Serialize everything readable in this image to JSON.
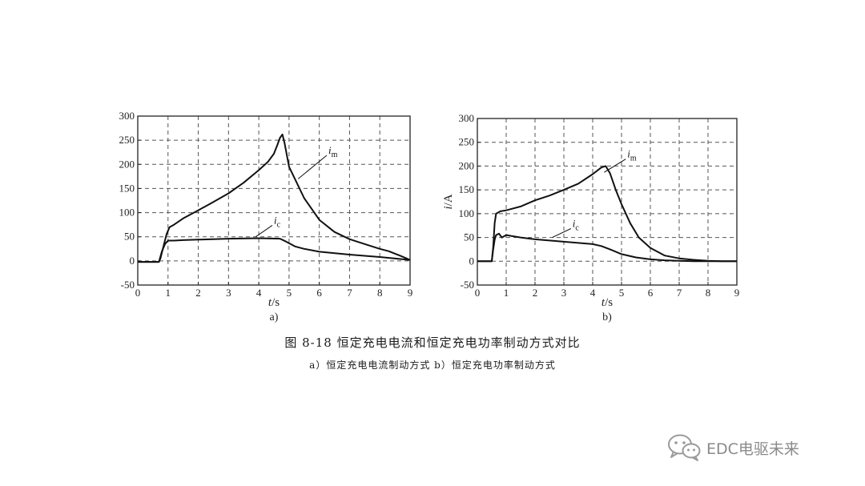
{
  "figure": {
    "caption": "图 8-18   恒定充电电流和恒定充电功率制动方式对比",
    "subcaption": "a）恒定充电电流制动方式   b）恒定充电功率制动方式"
  },
  "watermark": {
    "text": "EDC电驱未来",
    "icon": "wechat-icon"
  },
  "chart_data": [
    {
      "type": "line",
      "panel_label": "a)",
      "xlabel_var": "t",
      "xlabel_unit": "/s",
      "ylabel": "",
      "xlim": [
        0,
        9
      ],
      "ylim": [
        -50,
        300
      ],
      "xticks": [
        0,
        1,
        2,
        3,
        4,
        5,
        6,
        7,
        8,
        9
      ],
      "yticks": [
        -50,
        0,
        50,
        100,
        150,
        200,
        250,
        300
      ],
      "grid": true,
      "series": [
        {
          "name": "i",
          "subscript": "m",
          "x": [
            0,
            0.7,
            0.75,
            0.85,
            0.95,
            1.05,
            1.2,
            1.5,
            2,
            2.5,
            3,
            3.5,
            4,
            4.3,
            4.5,
            4.6,
            4.7,
            4.78,
            4.85,
            5.0,
            5.5,
            6,
            6.5,
            7,
            7.5,
            8,
            8.3,
            8.5,
            8.7,
            9
          ],
          "y": [
            -2,
            -2,
            5,
            30,
            55,
            70,
            75,
            88,
            105,
            122,
            140,
            162,
            188,
            205,
            222,
            238,
            255,
            262,
            245,
            195,
            130,
            85,
            60,
            45,
            35,
            25,
            20,
            15,
            10,
            2
          ]
        },
        {
          "name": "i",
          "subscript": "c",
          "x": [
            0,
            0.7,
            0.8,
            0.9,
            1.0,
            1.2,
            1.5,
            2,
            3,
            4,
            4.7,
            4.9,
            5.2,
            5.5,
            6,
            7,
            8,
            9
          ],
          "y": [
            -2,
            -2,
            20,
            35,
            42,
            42,
            43,
            44,
            46,
            47,
            46,
            40,
            30,
            25,
            19,
            13,
            8,
            2
          ]
        }
      ],
      "annotations": [
        {
          "series": "i_m",
          "label_at": [
            6.3,
            222
          ],
          "point_at": [
            5.3,
            170
          ]
        },
        {
          "series": "i_c",
          "label_at": [
            4.5,
            77
          ],
          "point_at": [
            3.9,
            50
          ]
        }
      ]
    },
    {
      "type": "line",
      "panel_label": "b)",
      "xlabel_var": "t",
      "xlabel_unit": "/s",
      "ylabel_var": "i",
      "ylabel_unit": "/A",
      "xlim": [
        0,
        9
      ],
      "ylim": [
        -50,
        300
      ],
      "xticks": [
        0,
        1,
        2,
        3,
        4,
        5,
        6,
        7,
        8,
        9
      ],
      "yticks": [
        -50,
        0,
        50,
        100,
        150,
        200,
        250,
        300
      ],
      "grid": true,
      "series": [
        {
          "name": "i",
          "subscript": "m",
          "x": [
            0,
            0.5,
            0.55,
            0.6,
            0.65,
            0.8,
            1,
            1.5,
            2,
            2.5,
            3,
            3.5,
            4,
            4.3,
            4.45,
            4.6,
            4.8,
            5,
            5.3,
            5.6,
            6,
            6.5,
            7,
            7.5,
            8,
            8.5,
            9
          ],
          "y": [
            0,
            0,
            30,
            80,
            100,
            105,
            107,
            115,
            128,
            138,
            150,
            163,
            183,
            197,
            200,
            185,
            150,
            120,
            80,
            50,
            28,
            12,
            6,
            3,
            1,
            0,
            0
          ]
        },
        {
          "name": "i",
          "subscript": "c",
          "x": [
            0,
            0.5,
            0.55,
            0.6,
            0.65,
            0.75,
            0.85,
            1.0,
            1.5,
            2,
            3,
            4,
            4.3,
            4.6,
            5,
            5.5,
            6,
            6.5,
            7,
            7.5,
            8,
            8.5,
            9
          ],
          "y": [
            0,
            0,
            25,
            45,
            55,
            58,
            50,
            55,
            50,
            46,
            41,
            36,
            32,
            25,
            15,
            8,
            4,
            2,
            1,
            0,
            0,
            0,
            0
          ]
        }
      ],
      "annotations": [
        {
          "series": "i_m",
          "label_at": [
            5.2,
            218
          ],
          "point_at": [
            4.4,
            187
          ]
        },
        {
          "series": "i_c",
          "label_at": [
            3.3,
            72
          ],
          "point_at": [
            2.6,
            50
          ]
        }
      ]
    }
  ]
}
